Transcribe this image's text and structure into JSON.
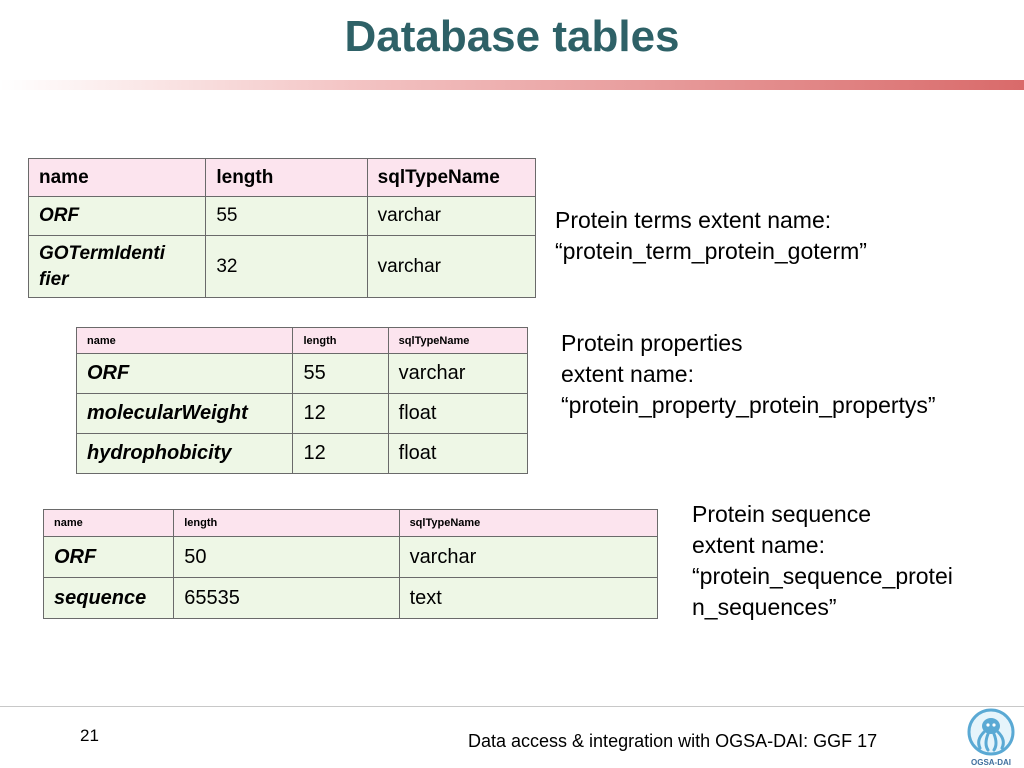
{
  "slide": {
    "title": "Database tables",
    "page_number": "21",
    "footer": "Data access & integration with OGSA-DAI: GGF 17",
    "logo_text": "OGSA-DAI"
  },
  "table1": {
    "headers": [
      "name",
      "length",
      "sqlTypeName"
    ],
    "rows": [
      {
        "name": "ORF",
        "length": "55",
        "type": "varchar"
      },
      {
        "name_line1": "GOTermIdenti",
        "name_line2": "fier",
        "length": "32",
        "type": "varchar"
      }
    ]
  },
  "table2": {
    "headers": [
      "name",
      "length",
      "sqlTypeName"
    ],
    "rows": [
      {
        "name": "ORF",
        "length": "55",
        "type": "varchar"
      },
      {
        "name": "molecularWeight",
        "length": "12",
        "type": "float"
      },
      {
        "name": "hydrophobicity",
        "length": "12",
        "type": "float"
      }
    ]
  },
  "table3": {
    "headers": [
      "name",
      "length",
      "sqlTypeName"
    ],
    "rows": [
      {
        "name": "ORF",
        "length": "50",
        "type": "varchar"
      },
      {
        "name": "sequence",
        "length": "65535",
        "type": "text"
      }
    ]
  },
  "notes": {
    "n1": [
      "Protein terms extent name:",
      "“protein_term_protein_goterm”"
    ],
    "n2": [
      "Protein properties",
      "extent name:",
      "“protein_property_protein_propertys”"
    ],
    "n3": [
      "Protein sequence",
      "extent name:",
      "“protein_sequence_protei",
      "n_sequences”"
    ]
  },
  "colors": {
    "title": "#2e6167",
    "header_fill": "#fce4ee",
    "row_fill": "#eef7e6",
    "accent_bar": "#d96a6a"
  }
}
